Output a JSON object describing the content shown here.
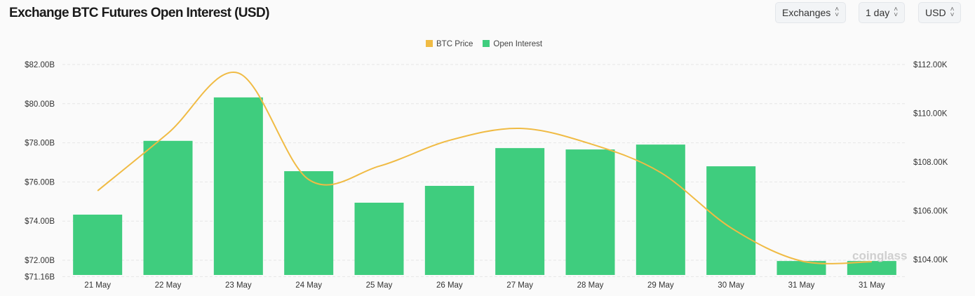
{
  "header": {
    "title": "Exchange BTC Futures Open Interest (USD)",
    "selectors": [
      {
        "label": "Exchanges"
      },
      {
        "label": "1 day"
      },
      {
        "label": "USD"
      }
    ]
  },
  "watermark": "coinglass",
  "chart_data": {
    "type": "bar+line",
    "title": "Exchange BTC Futures Open Interest (USD)",
    "categories": [
      "21 May",
      "22 May",
      "23 May",
      "24 May",
      "25 May",
      "26 May",
      "27 May",
      "28 May",
      "29 May",
      "30 May",
      "31 May",
      "31 May"
    ],
    "series": [
      {
        "name": "Open Interest",
        "type": "bar",
        "axis": "left",
        "unit": "B USD",
        "color": "#3fcd7e",
        "values": [
          74.33,
          78.1,
          80.32,
          76.55,
          74.94,
          75.8,
          77.73,
          77.66,
          77.91,
          76.8,
          71.96,
          71.96
        ]
      },
      {
        "name": "BTC Price",
        "type": "line",
        "axis": "right",
        "unit": "K USD",
        "color": "#f0bb44",
        "values": [
          106.82,
          109.18,
          111.65,
          107.28,
          107.83,
          108.89,
          109.38,
          108.75,
          107.57,
          105.3,
          103.94,
          103.91
        ]
      }
    ],
    "left_axis": {
      "ticks": [
        "$82.00B",
        "$80.00B",
        "$78.00B",
        "$76.00B",
        "$74.00B",
        "$72.00B",
        "$71.16B"
      ],
      "tick_values": [
        82,
        80,
        78,
        76,
        74,
        72,
        71.16
      ],
      "range": [
        71.16,
        82
      ]
    },
    "right_axis": {
      "ticks": [
        "$112.00K",
        "$110.00K",
        "$108.00K",
        "$106.00K",
        "$104.00K"
      ],
      "tick_values": [
        112,
        110,
        108,
        106,
        104
      ]
    },
    "legend": {
      "placement": "top-center",
      "entries": [
        "BTC Price",
        "Open Interest"
      ]
    },
    "grid": "horizontal dashed"
  }
}
